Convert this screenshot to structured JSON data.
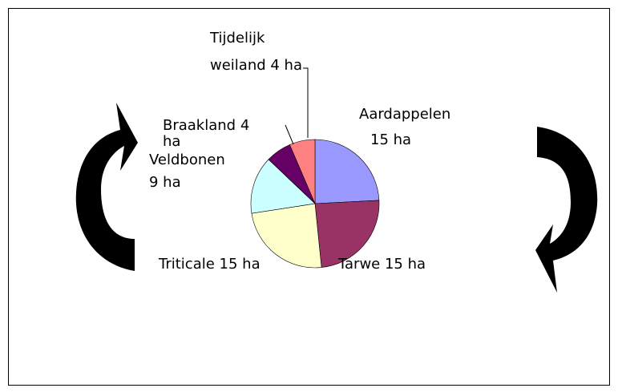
{
  "chart_data": {
    "type": "pie",
    "values": [
      15,
      15,
      15,
      9,
      4,
      4
    ],
    "value_labels": [
      [
        "Aardappelen",
        "15 ha"
      ],
      [
        "Tarwe 15 ha"
      ],
      [
        "Triticale 15 ha"
      ],
      [
        "Veldbonen",
        "9 ha"
      ],
      [
        "Braakland 4",
        "ha"
      ],
      [
        "Tijdelijk",
        "weiland 4 ha"
      ]
    ],
    "colors": [
      "#9999ff",
      "#993366",
      "#ffffcc",
      "#ccffff",
      "#660066",
      "#ff8080"
    ]
  }
}
